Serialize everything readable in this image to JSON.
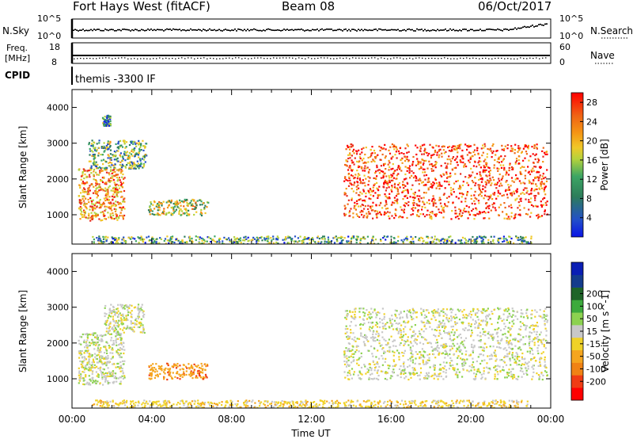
{
  "header": {
    "title": "Fort Hays West (fitACF)",
    "beam": "Beam 08",
    "date": "06/Oct/2017"
  },
  "noise_panel": {
    "left_label": "N.Sky",
    "left_ticks": [
      "10^5",
      "10^0"
    ],
    "right_ticks": [
      "10^5",
      "10^0"
    ],
    "right_label": "N.Search"
  },
  "freq_panel": {
    "left_label_1": "Freq.",
    "left_label_2": "[MHz]",
    "left_ticks": [
      "18",
      "8"
    ],
    "right_ticks": [
      "60",
      "0"
    ],
    "right_label": "Nave"
  },
  "cpid": {
    "label": "CPID",
    "value": "themis -3300 IF"
  },
  "chart_data": [
    {
      "type": "heatmap",
      "panel": "power",
      "ylabel": "Slant Range [km]",
      "ylim": [
        180,
        4500
      ],
      "yticks": [
        1000,
        2000,
        3000,
        4000
      ],
      "xlim": [
        0,
        24
      ],
      "colorbar": {
        "label": "Power [dB]",
        "ticks": [
          "4",
          "8",
          "12",
          "16",
          "20",
          "24",
          "28"
        ],
        "range": [
          0,
          30
        ],
        "colors": [
          "#0a14e6",
          "#2350c8",
          "#2d7d5a",
          "#3ca564",
          "#b4d23c",
          "#f0c828",
          "#f59614",
          "#f06414",
          "#e8281e",
          "#ff0000"
        ]
      },
      "echo_regions": [
        {
          "t": [
            0.3,
            2.6
          ],
          "r": [
            850,
            2300
          ],
          "power_db": 20
        },
        {
          "t": [
            0.8,
            3.7
          ],
          "r": [
            2300,
            3100
          ],
          "power_db": 11
        },
        {
          "t": [
            1.5,
            1.9
          ],
          "r": [
            3500,
            3800
          ],
          "power_db": 8
        },
        {
          "t": [
            3.8,
            6.8
          ],
          "r": [
            1000,
            1450
          ],
          "power_db": 14
        },
        {
          "t": [
            13.6,
            23.8
          ],
          "r": [
            900,
            3000
          ],
          "power_db": 24
        },
        {
          "t": [
            1.0,
            23.0
          ],
          "r": [
            200,
            420
          ],
          "power_db": 10
        }
      ]
    },
    {
      "type": "heatmap",
      "panel": "velocity",
      "ylabel": "Slant Range [km]",
      "ylim": [
        180,
        4500
      ],
      "yticks": [
        1000,
        2000,
        3000,
        4000
      ],
      "xlim": [
        0,
        24
      ],
      "xticks": [
        "00:00",
        "04:00",
        "08:00",
        "12:00",
        "16:00",
        "20:00",
        "00:00"
      ],
      "xlabel": "Time UT",
      "colorbar": {
        "label": "Velocity [m s^-1]",
        "ticks": [
          "-200",
          "-100",
          "-50",
          "-15",
          "15",
          "50",
          "100",
          "200"
        ],
        "colors": [
          "#ff0000",
          "#f03c14",
          "#f08214",
          "#f5a51e",
          "#f0d228",
          "#c8c8c8",
          "#8cd250",
          "#3caa3c",
          "#1e6428",
          "#143c8c",
          "#0a1eb4"
        ]
      },
      "echo_regions": [
        {
          "t": [
            0.3,
            2.6
          ],
          "r": [
            850,
            2300
          ],
          "velocity_ms": 0
        },
        {
          "t": [
            1.6,
            3.6
          ],
          "r": [
            2300,
            3100
          ],
          "velocity_ms": 0
        },
        {
          "t": [
            3.8,
            6.8
          ],
          "r": [
            1000,
            1450
          ],
          "velocity_ms": -80
        },
        {
          "t": [
            13.6,
            23.8
          ],
          "r": [
            1000,
            3000
          ],
          "velocity_ms": 0
        },
        {
          "t": [
            1.0,
            23.0
          ],
          "r": [
            200,
            420
          ],
          "velocity_ms": -30
        }
      ]
    }
  ]
}
